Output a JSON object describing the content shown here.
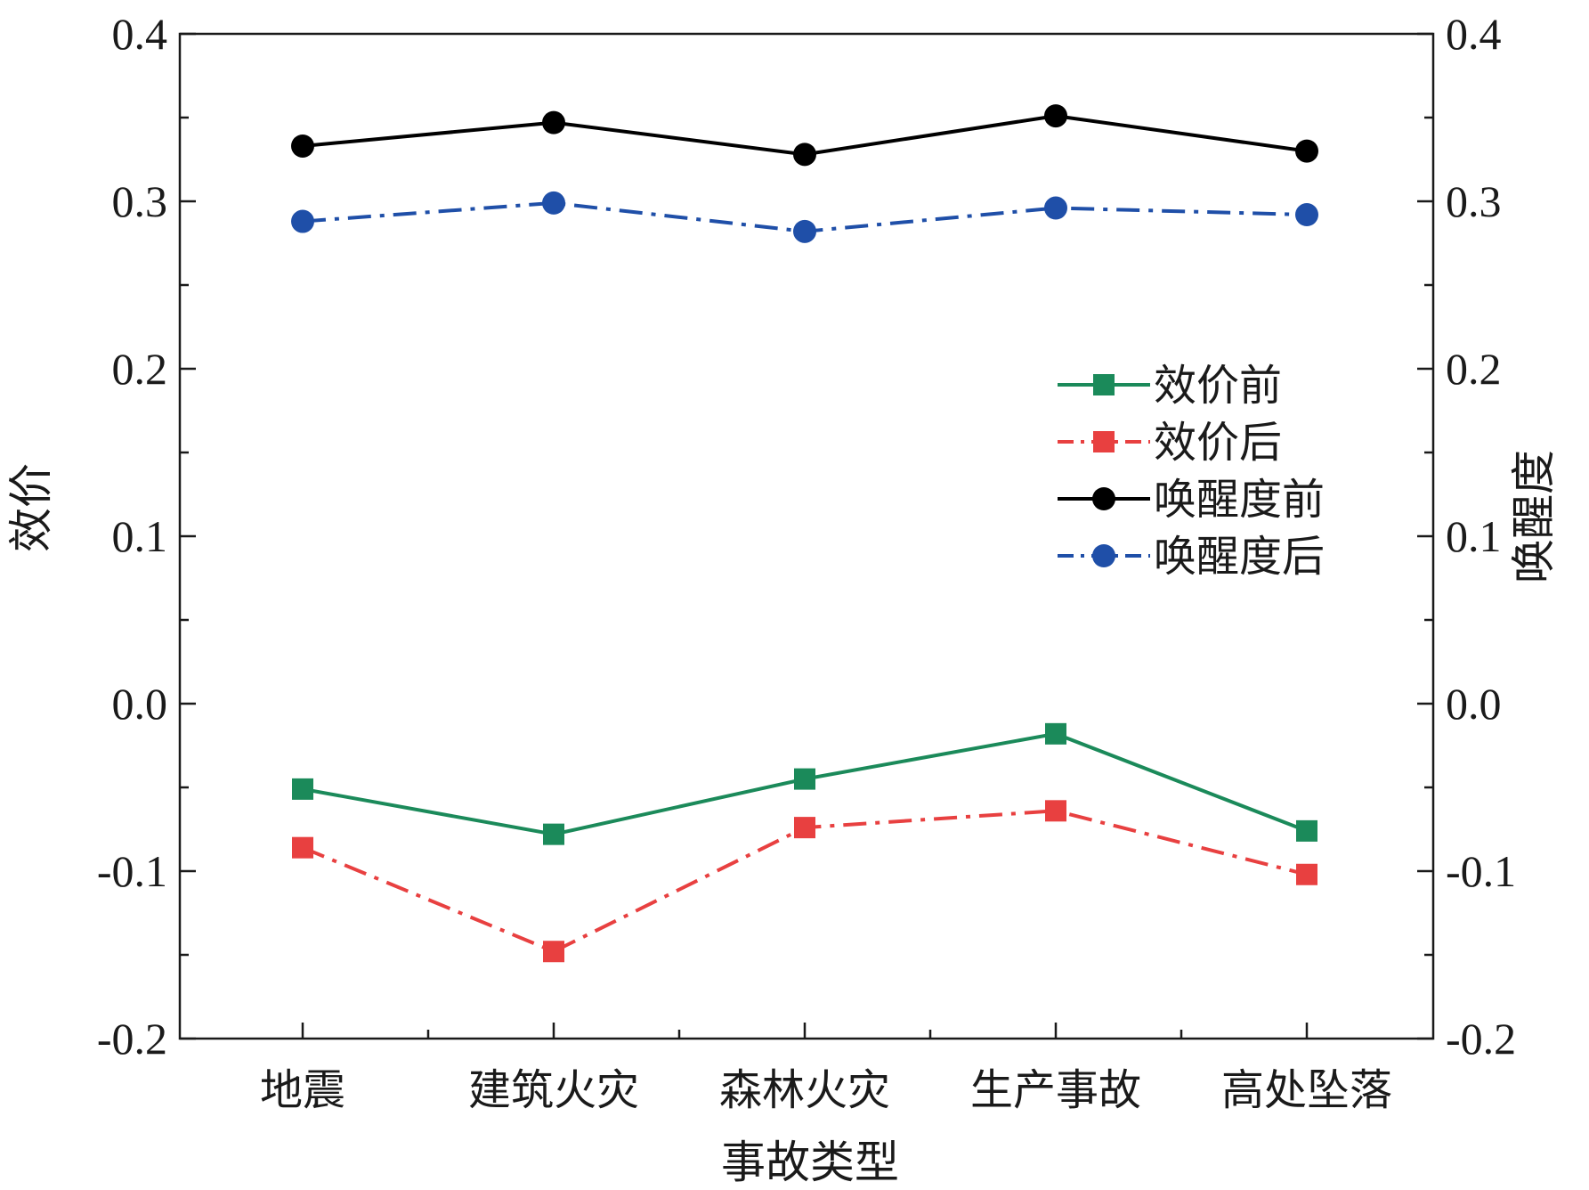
{
  "chart_data": {
    "type": "line",
    "categories": [
      "地震",
      "建筑火灾",
      "森林火灾",
      "生产事故",
      "高处坠落"
    ],
    "xlabel": "事故类型",
    "ylabel_left": "效价",
    "ylabel_right": "唤醒度",
    "ylim": [
      -0.2,
      0.4
    ],
    "yticks": [
      "-0.2",
      "-0.1",
      "0.0",
      "0.1",
      "0.2",
      "0.3",
      "0.4"
    ],
    "yticks_right": [
      "-0.2",
      "-0.1",
      "0.0",
      "0.1",
      "0.2",
      "0.3",
      "0.4"
    ],
    "grid": false,
    "legend_position": "middle-right",
    "series": [
      {
        "name": "效价前",
        "axis": "left",
        "marker": "square",
        "dash": "solid",
        "color": "#1b8a5a",
        "values": [
          -0.051,
          -0.078,
          -0.045,
          -0.018,
          -0.076
        ]
      },
      {
        "name": "效价后",
        "axis": "left",
        "marker": "square",
        "dash": "dashdot",
        "color": "#e84040",
        "values": [
          -0.086,
          -0.148,
          -0.074,
          -0.064,
          -0.102
        ]
      },
      {
        "name": "唤醒度前",
        "axis": "right",
        "marker": "circle",
        "dash": "solid",
        "color": "#000000",
        "values": [
          0.333,
          0.347,
          0.328,
          0.351,
          0.33
        ]
      },
      {
        "name": "唤醒度后",
        "axis": "right",
        "marker": "circle",
        "dash": "dashdot",
        "color": "#1f4fa8",
        "values": [
          0.288,
          0.299,
          0.282,
          0.296,
          0.292
        ]
      }
    ]
  }
}
